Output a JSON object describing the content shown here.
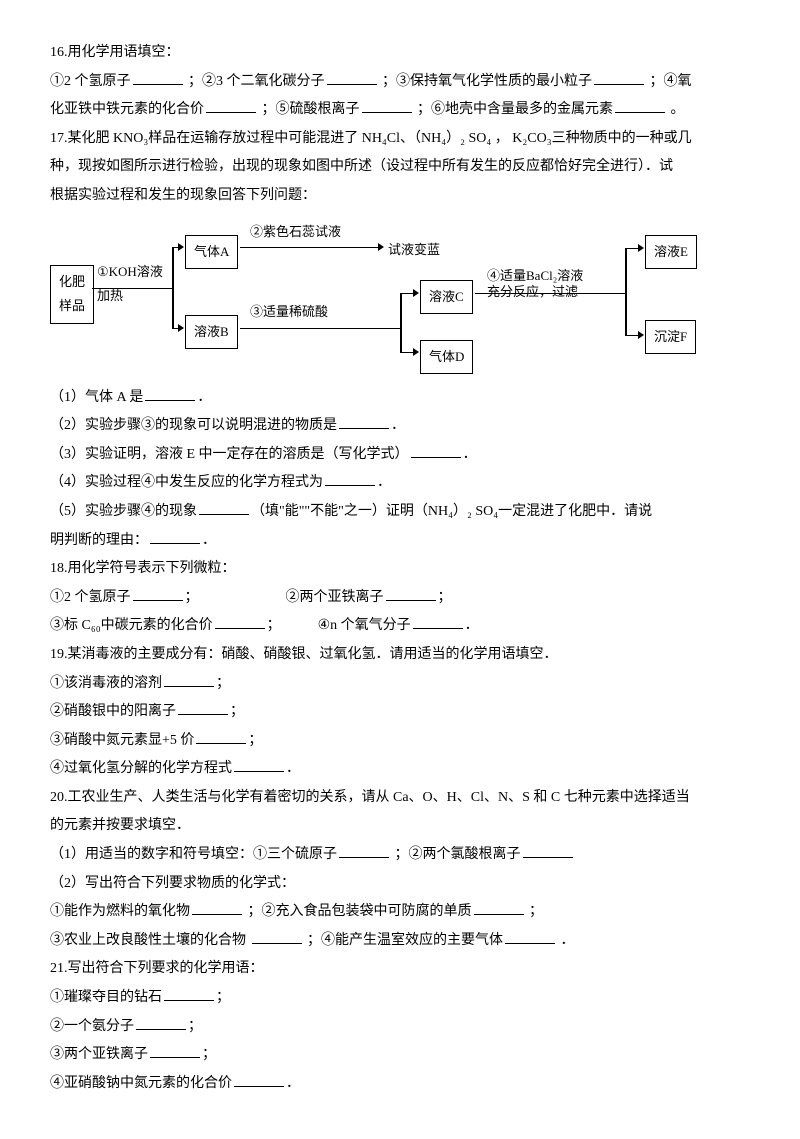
{
  "q16": {
    "title": "16.用化学用语填空：",
    "line1_a": "①2 个氢原子",
    "line1_b": "；②3 个二氧化碳分子",
    "line1_c": "；③保持氧气化学性质的最小粒子",
    "line1_d": "；④氧",
    "line2_a": "化亚铁中铁元素的化合价",
    "line2_b": "；⑤硫酸根离子",
    "line2_c": "；⑥地壳中含量最多的金属元素",
    "line2_d": "。"
  },
  "q17": {
    "intro1": "17.某化肥 KNO₃样品在运输存放过程中可能混进了 NH₄Cl、（NH₄）₂ SO₄  ， K₂CO₃三种物质中的一种或几",
    "intro2": "种，现按如图所示进行检验，出现的现象如图中所述（设过程中所有发生的反应都恰好完全进行）．试",
    "intro3": "根据实验过程和发生的现象回答下列问题：",
    "diagram": {
      "sample": "化肥\n样品",
      "koh": "①KOH溶液\n加热",
      "gasA": "气体A",
      "solB": "溶液B",
      "litmus": "②紫色石蕊试液",
      "result1": "试液变蓝",
      "sulfuric": "③适量稀硫酸",
      "solC": "溶液C",
      "gasD": "气体D",
      "bacl2": "④适量BaCl₂溶液\n充分反应，过滤",
      "solE": "溶液E",
      "precF": "沉淀F"
    },
    "sub1_a": "（1）气体 A 是",
    "sub1_b": "．",
    "sub2_a": "（2）实验步骤③的现象可以说明混进的物质是",
    "sub2_b": "．",
    "sub3_a": "（3）实验证明，溶液 E 中一定存在的溶质是（写化学式）",
    "sub3_b": "．",
    "sub4_a": "（4）实验过程④中发生反应的化学方程式为",
    "sub4_b": "．",
    "sub5_a": "（5）实验步骤④的现象",
    "sub5_b": "（填\"能\"\"不能\"之一）证明（NH₄）₂ SO₄一定混进了化肥中．请说",
    "sub5_c": "明判断的理由：",
    "sub5_d": "．"
  },
  "q18": {
    "title": "18.用化学符号表示下列微粒：",
    "line1_a": "①2 个氢原子",
    "line1_b": "；",
    "line1_c": "②两个亚铁离子",
    "line1_d": "；",
    "line2_a": "③标 C₆₀中碳元素的化合价",
    "line2_b": "；",
    "line2_c": "④n 个氧气分子",
    "line2_d": "．"
  },
  "q19": {
    "title": "19.某消毒液的主要成分有：硝酸、硝酸银、过氧化氢．请用适当的化学用语填空．",
    "sub1_a": "①该消毒液的溶剂",
    "sub1_b": "；",
    "sub2_a": "②硝酸银中的阳离子",
    "sub2_b": "；",
    "sub3_a": "③硝酸中氮元素显+5 价",
    "sub3_b": "；",
    "sub4_a": "④过氧化氢分解的化学方程式",
    "sub4_b": "．"
  },
  "q20": {
    "title1": "20.工农业生产、人类生活与化学有着密切的关系，请从 Ca、O、H、Cl、N、S 和 C 七种元素中选择适当",
    "title2": "的元素并按要求填空．",
    "sub1_a": "（1）用适当的数字和符号填空：①三个硫原子",
    "sub1_b": "；②两个氯酸根离子",
    "sub2": "（2）写出符合下列要求物质的化学式：",
    "sub3_a": "①能作为燃料的氧化物",
    "sub3_b": "；②充入食品包装袋中可防腐的单质",
    "sub3_c": "；",
    "sub4_a": "③农业上改良酸性土壤的化合物  ",
    "sub4_b": "；④能产生温室效应的主要气体",
    "sub4_c": "．"
  },
  "q21": {
    "title": "21.写出符合下列要求的化学用语：",
    "sub1_a": "①璀璨夺目的钻石",
    "sub1_b": "；",
    "sub2_a": "②一个氨分子",
    "sub2_b": "；",
    "sub3_a": "③两个亚铁离子",
    "sub3_b": "；",
    "sub4_a": "④亚硝酸钠中氮元素的化合价",
    "sub4_b": "．"
  }
}
